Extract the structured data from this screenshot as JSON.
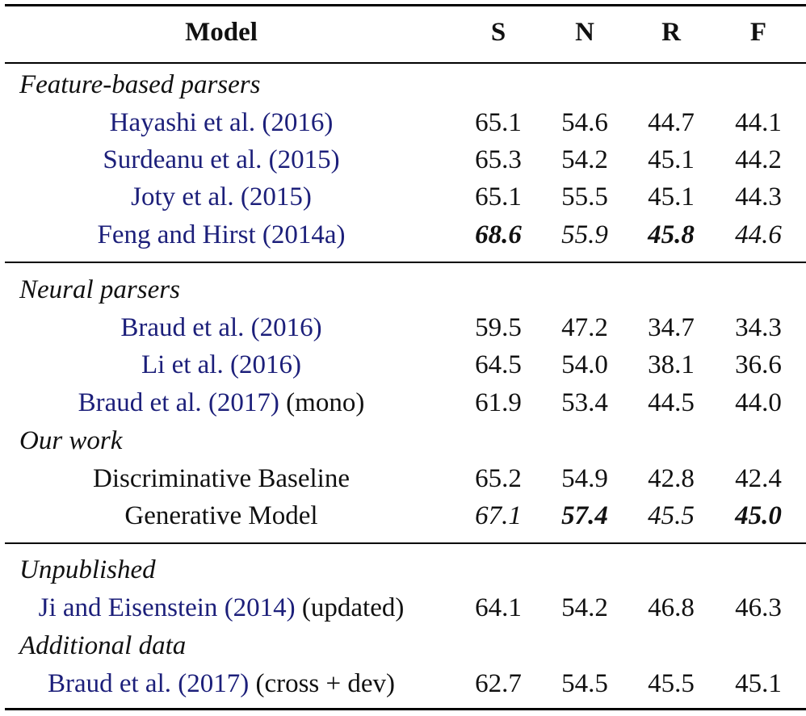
{
  "header": {
    "model": "Model",
    "s": "S",
    "n": "N",
    "r": "R",
    "f": "F"
  },
  "sections": [
    {
      "label": "Feature-based parsers",
      "rows": [
        {
          "name": "Hayashi et al.",
          "year": "(2016)",
          "suffix": "",
          "s": "65.1",
          "n": "54.6",
          "r": "44.7",
          "f": "44.1"
        },
        {
          "name": "Surdeanu et al.",
          "year": "(2015)",
          "suffix": "",
          "s": "65.3",
          "n": "54.2",
          "r": "45.1",
          "f": "44.2"
        },
        {
          "name": "Joty et al.",
          "year": "(2015)",
          "suffix": "",
          "s": "65.1",
          "n": "55.5",
          "r": "45.1",
          "f": "44.3"
        },
        {
          "name": "Feng and Hirst",
          "year": "(2014a)",
          "suffix": "",
          "s": "68.6",
          "n": "55.9",
          "r": "45.8",
          "f": "44.6"
        }
      ]
    },
    {
      "label": "Neural parsers",
      "rows": [
        {
          "name": "Braud et al.",
          "year": "(2016)",
          "suffix": "",
          "s": "59.5",
          "n": "47.2",
          "r": "34.7",
          "f": "34.3"
        },
        {
          "name": "Li et al.",
          "year": "(2016)",
          "suffix": "",
          "s": "64.5",
          "n": "54.0",
          "r": "38.1",
          "f": "36.6"
        },
        {
          "name": "Braud et al.",
          "year": "(2017)",
          "suffix": "(mono)",
          "s": "61.9",
          "n": "53.4",
          "r": "44.5",
          "f": "44.0"
        }
      ]
    },
    {
      "label": "Our work",
      "rows": [
        {
          "name": "Discriminative Baseline",
          "s": "65.2",
          "n": "54.9",
          "r": "42.8",
          "f": "42.4"
        },
        {
          "name": "Generative Model",
          "s": "67.1",
          "n": "57.4",
          "r": "45.5",
          "f": "45.0"
        }
      ]
    },
    {
      "label": "Unpublished",
      "rows": [
        {
          "name": "Ji and Eisenstein",
          "year": "(2014)",
          "suffix": "(updated)",
          "s": "64.1",
          "n": "54.2",
          "r": "46.8",
          "f": "46.3"
        }
      ]
    },
    {
      "label": "Additional data",
      "rows": [
        {
          "name": "Braud et al.",
          "year": "(2017)",
          "suffix": "(cross + dev)",
          "s": "62.7",
          "n": "54.5",
          "r": "45.5",
          "f": "45.1"
        }
      ]
    }
  ]
}
